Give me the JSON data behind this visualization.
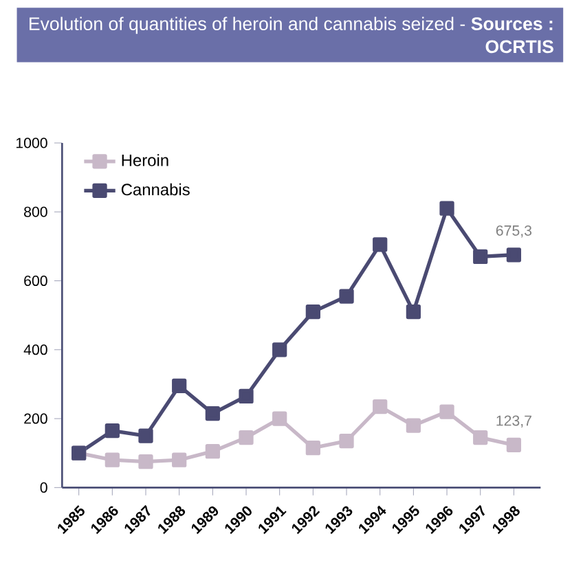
{
  "chart_data": {
    "type": "line",
    "title": "Evolution of quantities of heroin and cannabis seized - **Sources : OCRTIS**",
    "categories": [
      "1985",
      "1986",
      "1987",
      "1988",
      "1989",
      "1990",
      "1991",
      "1992",
      "1993",
      "1994",
      "1995",
      "1996",
      "1997",
      "1998"
    ],
    "series": [
      {
        "name": "Heroin",
        "color": "#c8b8c8",
        "values": [
          100,
          80,
          75,
          80,
          105,
          145,
          200,
          115,
          135,
          235,
          180,
          220,
          145,
          123.7
        ]
      },
      {
        "name": "Cannabis",
        "color": "#4a4a72",
        "values": [
          100,
          165,
          150,
          295,
          215,
          265,
          400,
          510,
          555,
          705,
          510,
          810,
          670,
          675.3
        ]
      }
    ],
    "ylim": [
      0,
      1000
    ],
    "yticks": [
      0,
      200,
      400,
      600,
      800,
      1000
    ],
    "annotations": [
      {
        "text": "675,3",
        "x": "1998",
        "y": 675.3
      },
      {
        "text": "123,7",
        "x": "1998",
        "y": 123.7
      }
    ],
    "legend": "top left",
    "marker": "square",
    "line_style": "solid",
    "grid": false
  }
}
